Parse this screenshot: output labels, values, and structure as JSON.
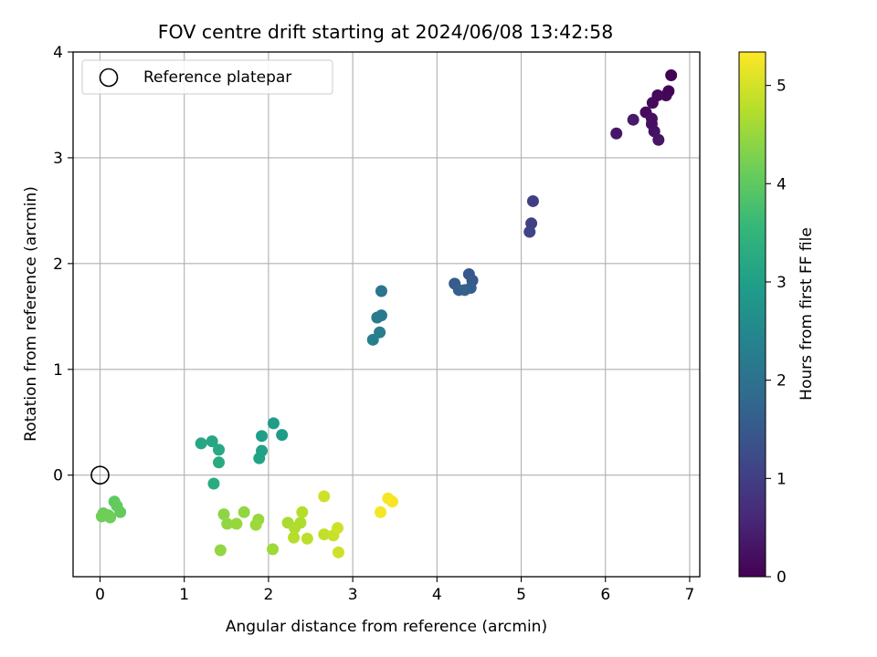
{
  "chart_data": {
    "type": "scatter",
    "title": "FOV centre drift starting at 2024/06/08 13:42:58",
    "xlabel": "Angular distance from reference (arcmin)",
    "ylabel": "Rotation from reference (arcmin)",
    "xlim": [
      -0.32,
      7.12
    ],
    "ylim": [
      -0.96,
      4.0
    ],
    "xticks": [
      0,
      1,
      2,
      3,
      4,
      5,
      6,
      7
    ],
    "yticks": [
      0,
      1,
      2,
      3,
      4
    ],
    "grid": true,
    "legend": {
      "placement": "top-left",
      "entries": [
        {
          "label": "Reference platepar",
          "marker": "open-circle"
        }
      ]
    },
    "reference_point": {
      "x": 0,
      "y": 0
    },
    "colorbar": {
      "label": "Hours from first FF file",
      "colormap": "viridis",
      "range": [
        0,
        5.34
      ],
      "ticks": [
        0,
        1,
        2,
        3,
        4,
        5
      ]
    },
    "points": [
      {
        "x": 6.78,
        "y": 3.78,
        "hours": 0.02
      },
      {
        "x": 6.75,
        "y": 3.63,
        "hours": 0.05
      },
      {
        "x": 6.72,
        "y": 3.59,
        "hours": 0.08
      },
      {
        "x": 6.62,
        "y": 3.59,
        "hours": 0.11
      },
      {
        "x": 6.56,
        "y": 3.52,
        "hours": 0.14
      },
      {
        "x": 6.48,
        "y": 3.43,
        "hours": 0.17
      },
      {
        "x": 6.55,
        "y": 3.37,
        "hours": 0.2
      },
      {
        "x": 6.55,
        "y": 3.32,
        "hours": 0.23
      },
      {
        "x": 6.58,
        "y": 3.25,
        "hours": 0.26
      },
      {
        "x": 6.63,
        "y": 3.17,
        "hours": 0.3
      },
      {
        "x": 6.13,
        "y": 3.23,
        "hours": 0.33
      },
      {
        "x": 6.33,
        "y": 3.36,
        "hours": 0.38
      },
      {
        "x": 5.14,
        "y": 2.59,
        "hours": 1.0
      },
      {
        "x": 5.12,
        "y": 2.38,
        "hours": 1.05
      },
      {
        "x": 5.1,
        "y": 2.3,
        "hours": 1.1
      },
      {
        "x": 4.38,
        "y": 1.9,
        "hours": 1.45
      },
      {
        "x": 4.42,
        "y": 1.84,
        "hours": 1.5
      },
      {
        "x": 4.21,
        "y": 1.81,
        "hours": 1.55
      },
      {
        "x": 4.4,
        "y": 1.77,
        "hours": 1.58
      },
      {
        "x": 4.26,
        "y": 1.75,
        "hours": 1.62
      },
      {
        "x": 4.33,
        "y": 1.75,
        "hours": 1.66
      },
      {
        "x": 3.34,
        "y": 1.74,
        "hours": 2.1
      },
      {
        "x": 3.34,
        "y": 1.51,
        "hours": 2.15
      },
      {
        "x": 3.29,
        "y": 1.49,
        "hours": 2.2
      },
      {
        "x": 3.32,
        "y": 1.35,
        "hours": 2.25
      },
      {
        "x": 3.24,
        "y": 1.28,
        "hours": 2.3
      },
      {
        "x": 2.06,
        "y": 0.49,
        "hours": 2.95
      },
      {
        "x": 1.92,
        "y": 0.37,
        "hours": 3.0
      },
      {
        "x": 2.16,
        "y": 0.38,
        "hours": 2.95
      },
      {
        "x": 1.92,
        "y": 0.23,
        "hours": 3.05
      },
      {
        "x": 1.89,
        "y": 0.16,
        "hours": 3.08
      },
      {
        "x": 1.2,
        "y": 0.3,
        "hours": 3.15
      },
      {
        "x": 1.33,
        "y": 0.32,
        "hours": 3.15
      },
      {
        "x": 1.41,
        "y": 0.24,
        "hours": 3.2
      },
      {
        "x": 1.41,
        "y": 0.12,
        "hours": 3.25
      },
      {
        "x": 1.35,
        "y": -0.08,
        "hours": 3.3
      },
      {
        "x": 0.17,
        "y": -0.25,
        "hours": 4.0
      },
      {
        "x": 0.2,
        "y": -0.29,
        "hours": 4.05
      },
      {
        "x": 0.24,
        "y": -0.35,
        "hours": 4.05
      },
      {
        "x": 0.04,
        "y": -0.36,
        "hours": 4.1
      },
      {
        "x": 0.1,
        "y": -0.38,
        "hours": 4.1
      },
      {
        "x": 0.02,
        "y": -0.39,
        "hours": 4.15
      },
      {
        "x": 0.12,
        "y": -0.4,
        "hours": 4.15
      },
      {
        "x": 1.47,
        "y": -0.37,
        "hours": 4.4
      },
      {
        "x": 1.71,
        "y": -0.35,
        "hours": 4.45
      },
      {
        "x": 1.51,
        "y": -0.46,
        "hours": 4.45
      },
      {
        "x": 1.62,
        "y": -0.46,
        "hours": 4.5
      },
      {
        "x": 1.88,
        "y": -0.42,
        "hours": 4.5
      },
      {
        "x": 1.85,
        "y": -0.47,
        "hours": 4.55
      },
      {
        "x": 1.43,
        "y": -0.71,
        "hours": 4.45
      },
      {
        "x": 2.05,
        "y": -0.7,
        "hours": 4.55
      },
      {
        "x": 2.23,
        "y": -0.45,
        "hours": 4.65
      },
      {
        "x": 2.38,
        "y": -0.45,
        "hours": 4.7
      },
      {
        "x": 2.4,
        "y": -0.35,
        "hours": 4.75
      },
      {
        "x": 2.31,
        "y": -0.5,
        "hours": 4.7
      },
      {
        "x": 2.3,
        "y": -0.59,
        "hours": 4.75
      },
      {
        "x": 2.46,
        "y": -0.6,
        "hours": 4.8
      },
      {
        "x": 2.66,
        "y": -0.2,
        "hours": 4.95
      },
      {
        "x": 2.66,
        "y": -0.56,
        "hours": 4.85
      },
      {
        "x": 2.77,
        "y": -0.57,
        "hours": 4.9
      },
      {
        "x": 2.82,
        "y": -0.5,
        "hours": 4.95
      },
      {
        "x": 2.83,
        "y": -0.73,
        "hours": 4.95
      },
      {
        "x": 3.42,
        "y": -0.22,
        "hours": 5.25
      },
      {
        "x": 3.47,
        "y": -0.25,
        "hours": 5.3
      },
      {
        "x": 3.33,
        "y": -0.35,
        "hours": 5.25
      }
    ]
  }
}
